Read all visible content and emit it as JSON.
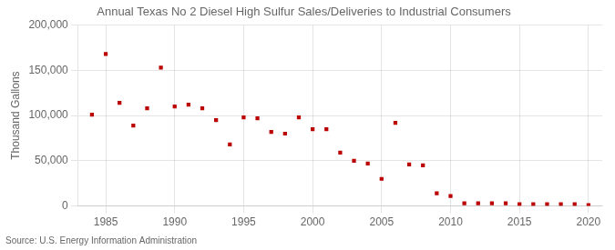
{
  "chart_data": {
    "type": "scatter",
    "title": "Annual Texas No 2 Diesel High Sulfur Sales/Deliveries to Industrial Consumers",
    "ylabel": "Thousand Gallons",
    "annotation": "Source: U.S. Energy Information Administration",
    "x": [
      1984,
      1985,
      1986,
      1987,
      1988,
      1989,
      1990,
      1991,
      1992,
      1993,
      1994,
      1995,
      1996,
      1997,
      1998,
      1999,
      2000,
      2001,
      2002,
      2003,
      2004,
      2005,
      2006,
      2007,
      2008,
      2009,
      2010,
      2011,
      2012,
      2013,
      2014,
      2015,
      2016,
      2017,
      2018,
      2019,
      2020
    ],
    "values": [
      101000,
      168000,
      114000,
      89000,
      108000,
      153000,
      110000,
      112000,
      108000,
      95000,
      68000,
      98000,
      97000,
      82000,
      80000,
      98000,
      85000,
      85000,
      59000,
      50000,
      47000,
      30000,
      92000,
      46000,
      45000,
      14000,
      11000,
      3000,
      3000,
      3000,
      3000,
      2000,
      2000,
      2000,
      2000,
      2000,
      1000
    ],
    "color": "#bb0000",
    "marker": "square",
    "xlim": [
      1983,
      2021
    ],
    "xticks": [
      1985,
      1990,
      1995,
      2000,
      2005,
      2010,
      2015,
      2020
    ],
    "ylim": [
      0,
      200000
    ],
    "yticks": [
      0,
      {
        "value": 50000,
        "label": "50,000"
      },
      {
        "value": 100000,
        "label": "100,000"
      },
      {
        "value": 150000,
        "label": "150,000"
      },
      {
        "value": 200000,
        "label": "200,000"
      }
    ],
    "grid": true
  }
}
